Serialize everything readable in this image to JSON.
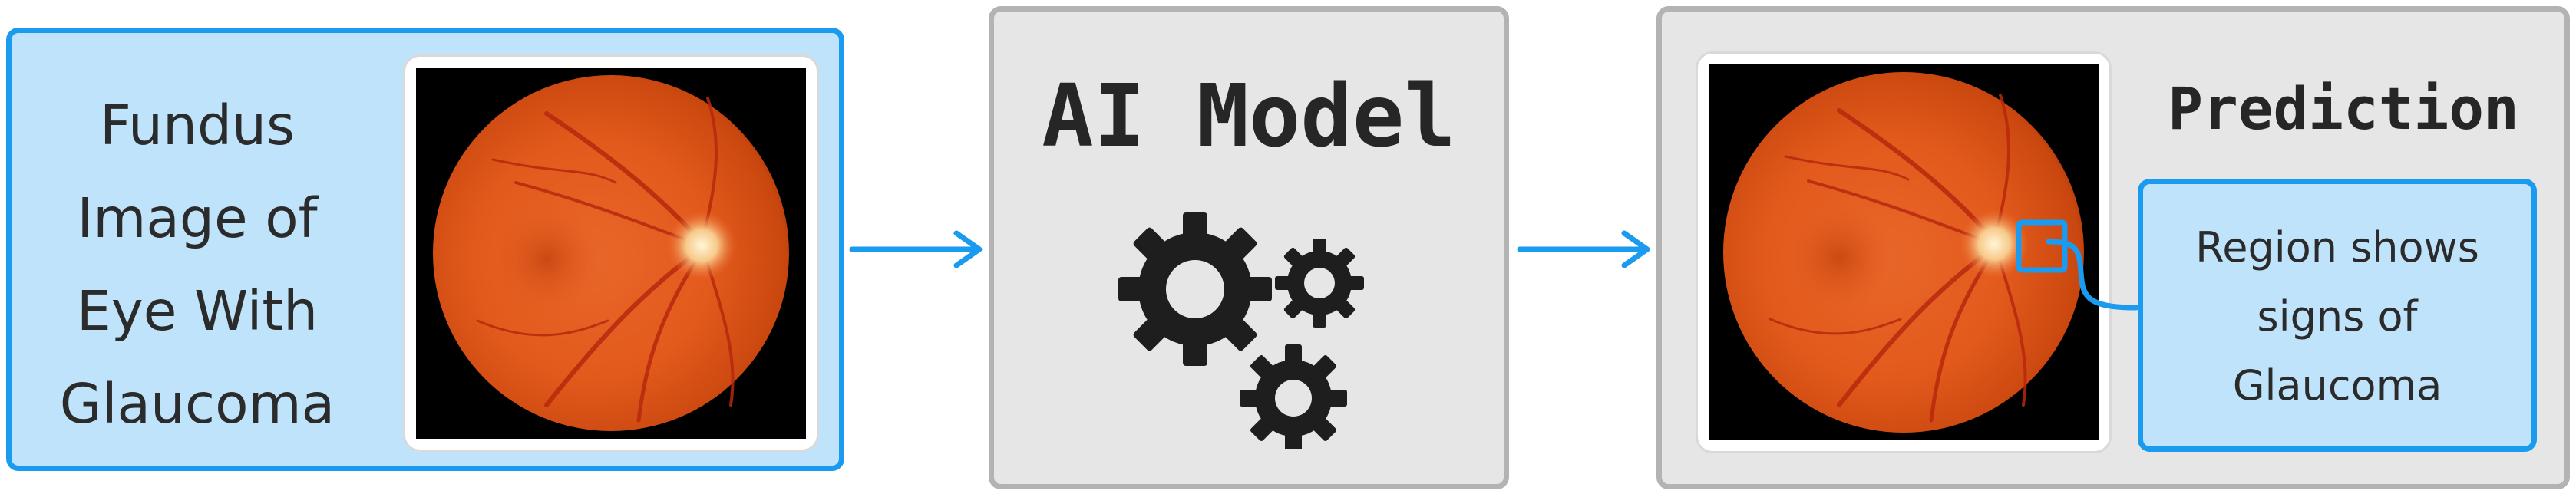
{
  "input_panel": {
    "label_lines": [
      "Fundus",
      "Image of",
      "Eye With",
      "Glaucoma"
    ],
    "image": "fundus-eye-photo"
  },
  "model_panel": {
    "title": "AI Model",
    "icon": "gears-icon"
  },
  "prediction_panel": {
    "title": "Prediction",
    "image": "fundus-eye-photo-with-highlight",
    "text_lines": [
      "Region shows",
      "signs of",
      "Glaucoma"
    ]
  },
  "colors": {
    "accent_blue": "#1a9bef",
    "light_blue_fill": "#bfe3fb",
    "panel_gray": "#e6e6e6",
    "panel_border_gray": "#b3b3b3"
  }
}
